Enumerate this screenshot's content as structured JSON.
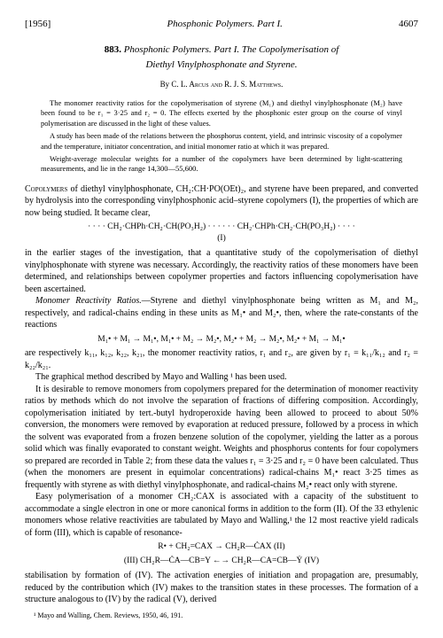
{
  "header": {
    "year": "[1956]",
    "running_title": "Phosphonic Polymers. Part I.",
    "page_number": "4607"
  },
  "title": {
    "number": "883.",
    "line1": "Phosphonic Polymers. Part I. The Copolymerisation of",
    "line2": "Diethyl Vinylphosphonate and Styrene."
  },
  "byline": {
    "by": "By",
    "authors": "C. L. Arcus and R. J. S. Matthews."
  },
  "abstract": {
    "p1": "The monomer reactivity ratios for the copolymerisation of styrene (M₁) and diethyl vinylphosphonate (M₂) have been found to be r₁ = 3·25 and r₂ = 0. The effects exerted by the phosphonic ester group on the course of vinyl polymerisation are discussed in the light of these values.",
    "p2": "A study has been made of the relations between the phosphorus content, yield, and intrinsic viscosity of a copolymer and the temperature, initiator concentration, and initial monomer ratio at which it was prepared.",
    "p3": "Weight-average molecular weights for a number of the copolymers have been determined by light-scattering measurements, and lie in the range 14,300—55,600."
  },
  "body": {
    "p1_lead": "Copolymers",
    "p1": " of diethyl vinylphosphonate, CH₂:CH·PO(OEt)₂, and styrene have been prepared, and converted by hydrolysis into the corresponding vinylphosphonic acid–styrene copolymers (I), the properties of which are now being studied. It became clear,",
    "formula1": "· · · · CH₂·CHPh·CH₂·CH(PO₃H₂) · · · · · · CH₂·CHPh·CH₂·CH(PO₃H₂) · · · ·",
    "formula1_label": "(I)",
    "p2": "in the earlier stages of the investigation, that a quantitative study of the copolymerisation of diethyl vinylphosphonate with styrene was necessary. Accordingly, the reactivity ratios of these monomers have been determined, and relationships between copolymer properties and factors influencing copolymerisation have been ascertained.",
    "p3_label": "Monomer Reactivity Ratios.",
    "p3": "—Styrene and diethyl vinylphosphonate being written as M₁ and M₂, respectively, and radical-chains ending in these units as M₁• and M₂•, then, where the rate-constants of the reactions",
    "formula2": "M₁• + M₁ → M₁•, M₁• + M₂ → M₂•, M₂• + M₂ → M₂•, M₂• + M₁ → M₁•",
    "p4": "are respectively k₁₁, k₁₂, k₂₂, k₂₁, the monomer reactivity ratios, r₁ and r₂, are given by r₁ = k₁₁/k₁₂ and r₂ = k₂₂/k₂₁.",
    "p5": "The graphical method described by Mayo and Walling ¹ has been used.",
    "p6": "It is desirable to remove monomers from copolymers prepared for the determination of monomer reactivity ratios by methods which do not involve the separation of fractions of differing composition. Accordingly, copolymerisation initiated by tert.-butyl hydroperoxide having been allowed to proceed to about 50% conversion, the monomers were removed by evaporation at reduced pressure, followed by a process in which the solvent was evaporated from a frozen benzene solution of the copolymer, yielding the latter as a porous solid which was finally evaporated to constant weight. Weights and phosphorus contents for four copolymers so prepared are recorded in Table 2; from these data the values r₁ = 3·25 and r₂ = 0 have been calculated. Thus (when the monomers are present in equimolar concentrations) radical-chains M₁• react 3·25 times as frequently with styrene as with diethyl vinylphosphonate, and radical-chains M₂• react only with styrene.",
    "p7": "Easy polymerisation of a monomer CH₂:CAX is associated with a capacity of the substituent to accommodate a single electron in one or more canonical forms in addition to the form (II). Of the 33 ethylenic monomers whose relative reactivities are tabulated by Mayo and Walling,¹ the 12 most reactive yield radicals of form (III), which is capable of resonance-",
    "formula3a": "R• + CH₂=CAX → CH₂R—ĊAX   (II)",
    "formula3b": "(III)   CH₂R—ĊA—CB=Y ←→ CH₂R—CA=CB—Ẏ   (IV)",
    "p8": "stabilisation by formation of (IV). The activation energies of initiation and propagation are, presumably, reduced by the contribution which (IV) makes to the transition states in these processes. The formation of a structure analogous to (IV) by the radical (V), derived"
  },
  "footnote": "¹ Mayo and Walling, Chem. Reviews, 1950, 46, 191."
}
